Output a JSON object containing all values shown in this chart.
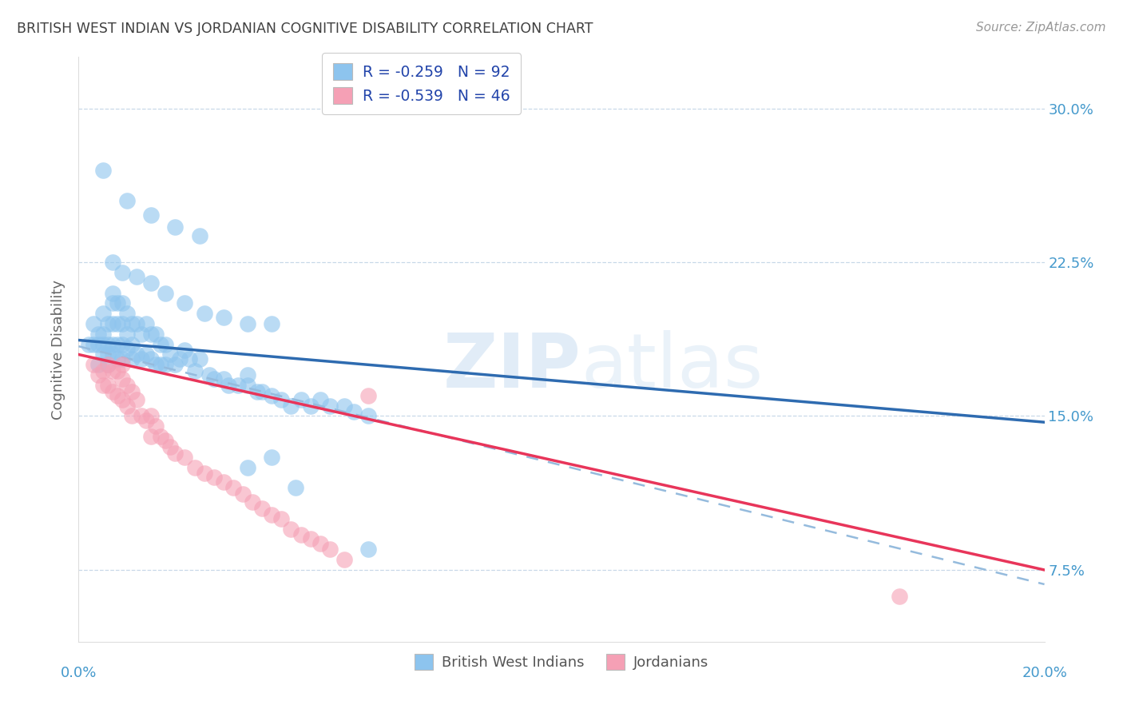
{
  "title": "BRITISH WEST INDIAN VS JORDANIAN COGNITIVE DISABILITY CORRELATION CHART",
  "source": "Source: ZipAtlas.com",
  "ylabel": "Cognitive Disability",
  "ytick_labels": [
    "7.5%",
    "15.0%",
    "22.5%",
    "30.0%"
  ],
  "ytick_values": [
    0.075,
    0.15,
    0.225,
    0.3
  ],
  "xlim": [
    0.0,
    0.2
  ],
  "ylim": [
    0.04,
    0.325
  ],
  "legend1_label": "R = -0.259   N = 92",
  "legend2_label": "R = -0.539   N = 46",
  "watermark_zip": "ZIP",
  "watermark_atlas": "atlas",
  "scatter_blue_color": "#8DC4EE",
  "scatter_pink_color": "#F5A0B5",
  "line_blue_color": "#2E6BB0",
  "line_pink_color": "#E8355A",
  "line_dashed_color": "#95BBDD",
  "background_color": "#FFFFFF",
  "title_color": "#404040",
  "tick_color": "#4499CC",
  "legend_label_text_color": "#2244AA",
  "grid_color": "#C8D8E8",
  "bwi_scatter_x": [
    0.002,
    0.003,
    0.003,
    0.004,
    0.004,
    0.004,
    0.005,
    0.005,
    0.005,
    0.005,
    0.006,
    0.006,
    0.006,
    0.006,
    0.007,
    0.007,
    0.007,
    0.007,
    0.007,
    0.008,
    0.008,
    0.008,
    0.008,
    0.009,
    0.009,
    0.009,
    0.009,
    0.01,
    0.01,
    0.01,
    0.011,
    0.011,
    0.011,
    0.012,
    0.012,
    0.013,
    0.013,
    0.014,
    0.014,
    0.015,
    0.015,
    0.016,
    0.016,
    0.017,
    0.017,
    0.018,
    0.018,
    0.019,
    0.02,
    0.021,
    0.022,
    0.023,
    0.024,
    0.025,
    0.027,
    0.028,
    0.03,
    0.031,
    0.033,
    0.035,
    0.037,
    0.038,
    0.04,
    0.042,
    0.044,
    0.046,
    0.048,
    0.05,
    0.052,
    0.055,
    0.057,
    0.06,
    0.007,
    0.009,
    0.012,
    0.015,
    0.018,
    0.022,
    0.026,
    0.03,
    0.035,
    0.04,
    0.005,
    0.01,
    0.015,
    0.02,
    0.025,
    0.035,
    0.04,
    0.045,
    0.06,
    0.035
  ],
  "bwi_scatter_y": [
    0.185,
    0.195,
    0.185,
    0.19,
    0.185,
    0.175,
    0.2,
    0.19,
    0.185,
    0.18,
    0.195,
    0.185,
    0.18,
    0.175,
    0.21,
    0.205,
    0.195,
    0.185,
    0.18,
    0.205,
    0.195,
    0.185,
    0.178,
    0.205,
    0.195,
    0.185,
    0.178,
    0.2,
    0.19,
    0.183,
    0.195,
    0.185,
    0.178,
    0.195,
    0.18,
    0.19,
    0.178,
    0.195,
    0.18,
    0.19,
    0.178,
    0.19,
    0.175,
    0.185,
    0.175,
    0.185,
    0.175,
    0.18,
    0.175,
    0.178,
    0.182,
    0.178,
    0.172,
    0.178,
    0.17,
    0.168,
    0.168,
    0.165,
    0.165,
    0.165,
    0.162,
    0.162,
    0.16,
    0.158,
    0.155,
    0.158,
    0.155,
    0.158,
    0.155,
    0.155,
    0.152,
    0.15,
    0.225,
    0.22,
    0.218,
    0.215,
    0.21,
    0.205,
    0.2,
    0.198,
    0.195,
    0.195,
    0.27,
    0.255,
    0.248,
    0.242,
    0.238,
    0.17,
    0.13,
    0.115,
    0.085,
    0.125
  ],
  "jordan_scatter_x": [
    0.003,
    0.004,
    0.005,
    0.005,
    0.006,
    0.006,
    0.007,
    0.007,
    0.008,
    0.008,
    0.009,
    0.009,
    0.01,
    0.01,
    0.011,
    0.011,
    0.012,
    0.013,
    0.014,
    0.015,
    0.015,
    0.016,
    0.017,
    0.018,
    0.019,
    0.02,
    0.022,
    0.024,
    0.026,
    0.028,
    0.03,
    0.032,
    0.034,
    0.036,
    0.038,
    0.04,
    0.042,
    0.044,
    0.046,
    0.048,
    0.05,
    0.052,
    0.055,
    0.06,
    0.17,
    0.009
  ],
  "jordan_scatter_y": [
    0.175,
    0.17,
    0.172,
    0.165,
    0.175,
    0.165,
    0.172,
    0.162,
    0.172,
    0.16,
    0.168,
    0.158,
    0.165,
    0.155,
    0.162,
    0.15,
    0.158,
    0.15,
    0.148,
    0.15,
    0.14,
    0.145,
    0.14,
    0.138,
    0.135,
    0.132,
    0.13,
    0.125,
    0.122,
    0.12,
    0.118,
    0.115,
    0.112,
    0.108,
    0.105,
    0.102,
    0.1,
    0.095,
    0.092,
    0.09,
    0.088,
    0.085,
    0.08,
    0.16,
    0.062,
    0.175
  ],
  "bwi_line_x": [
    0.0,
    0.2
  ],
  "bwi_line_y": [
    0.187,
    0.147
  ],
  "jordan_line_x": [
    0.0,
    0.2
  ],
  "jordan_line_y": [
    0.18,
    0.075
  ],
  "dashed_line_x": [
    0.0,
    0.2
  ],
  "dashed_line_y": [
    0.184,
    0.068
  ]
}
